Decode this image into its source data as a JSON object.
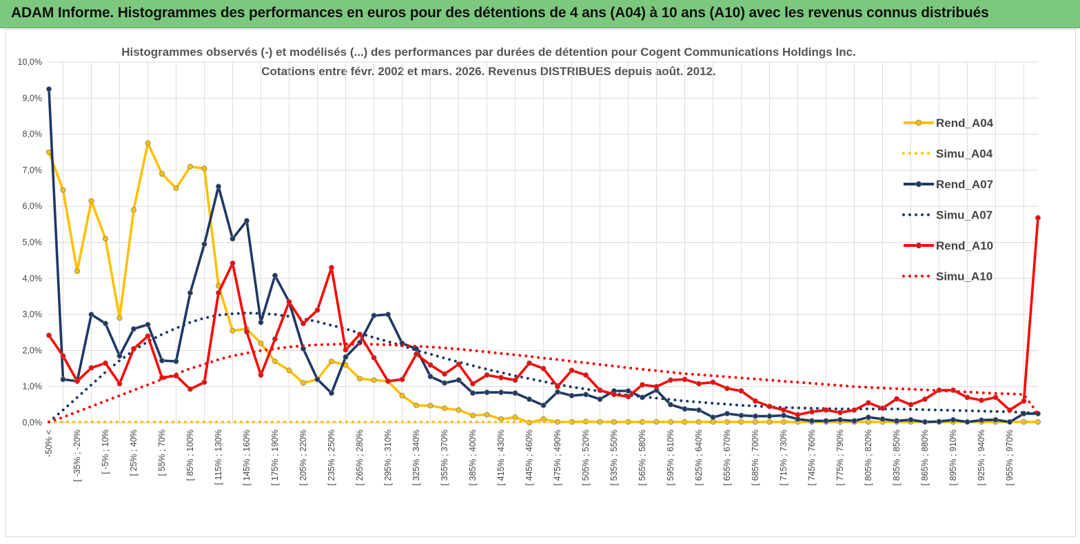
{
  "header": {
    "title": "ADAM Informe. Histogrammes des performances en euros pour des détentions de 4 ans (A04) à 10 ans (A10) avec les revenus connus distribués",
    "background": "#7dc87f"
  },
  "chart_data": {
    "type": "line",
    "title_line1": "Histogrammes observés (-) et modélisés (...) des performances par durées de détention pour Cogent Communications Holdings Inc.",
    "title_line2": "Cotations entre févr. 2002 et mars. 2026. Revenus DISTRIBUES depuis août. 2012.",
    "ylim": [
      0,
      10
    ],
    "yticks": [
      "0,0%",
      "1,0%",
      "2,0%",
      "3,0%",
      "4,0%",
      "5,0%",
      "6,0%",
      "7,0%",
      "8,0%",
      "9,0%",
      "10,0%"
    ],
    "xticklabels": [
      "-50% <",
      "[ -35% ; -20%",
      "[ -5% ; 10%",
      "[ 25% ; 40%",
      "[ 55% ; 70%",
      "[ 85% ; 100%",
      "[ 115% ; 130%",
      "[ 145% ; 160%",
      "[ 175% ; 190%",
      "[ 205% ; 220%",
      "[ 235% ; 250%",
      "[ 265% ; 280%",
      "[ 295% ; 310%",
      "[ 325% ; 340%",
      "[ 355% ; 370%",
      "[ 385% ; 400%",
      "[ 415% ; 430%",
      "[ 445% ; 460%",
      "[ 475% ; 490%",
      "[ 505% ; 520%",
      "[ 535% ; 550%",
      "[ 565% ; 580%",
      "[ 595% ; 610%",
      "[ 625% ; 640%",
      "[ 655% ; 670%",
      "[ 685% ; 700%",
      "[ 715% ; 730%",
      "[ 745% ; 760%",
      "[ 775% ; 790%",
      "[ 805% ; 820%",
      "[ 835% ; 850%",
      "[ 865% ; 880%",
      "[ 895% ; 910%",
      "[ 925% ; 940%",
      "[ 955% ; 970%"
    ],
    "series": [
      {
        "name": "Rend_A04",
        "style": "solid",
        "color": "#ffc000",
        "values": [
          7.5,
          6.45,
          4.2,
          6.15,
          5.1,
          2.9,
          5.9,
          7.75,
          6.9,
          6.5,
          7.1,
          7.05,
          3.8,
          2.55,
          2.6,
          2.2,
          1.7,
          1.45,
          1.1,
          1.2,
          1.7,
          1.6,
          1.22,
          1.18,
          1.15,
          0.75,
          0.48,
          0.47,
          0.4,
          0.35,
          0.2,
          0.22,
          0.1,
          0.15,
          0.0,
          0.1,
          0.02,
          0.02,
          0.03,
          0.02,
          0.02,
          0.02,
          0.02,
          0.02,
          0.02,
          0.02,
          0.02,
          0.02,
          0.02,
          0.02,
          0.02,
          0.02,
          0.02,
          0.02,
          0.02,
          0.02,
          0.02,
          0.02,
          0.02,
          0.02,
          0.02,
          0.02,
          0.02,
          0.02,
          0.02,
          0.02,
          0.02,
          0.02,
          0.02,
          0.02,
          0.02
        ]
      },
      {
        "name": "Simu_A04",
        "style": "dotted",
        "color": "#ffc000",
        "values": [
          0.02,
          0.02,
          0.02,
          0.02,
          0.02,
          0.02,
          0.02,
          0.02,
          0.02,
          0.02,
          0.02,
          0.02,
          0.02,
          0.02,
          0.02,
          0.02,
          0.02,
          0.02,
          0.02,
          0.02,
          0.02,
          0.02,
          0.02,
          0.02,
          0.02,
          0.02,
          0.02,
          0.02,
          0.02,
          0.02,
          0.02,
          0.02,
          0.02,
          0.02,
          0.02,
          0.02,
          0.02,
          0.02,
          0.02,
          0.02,
          0.02,
          0.02,
          0.02,
          0.02,
          0.02,
          0.02,
          0.02,
          0.02,
          0.02,
          0.02,
          0.02,
          0.02,
          0.02,
          0.02,
          0.02,
          0.02,
          0.02,
          0.02,
          0.02,
          0.02,
          0.02,
          0.02,
          0.02,
          0.02,
          0.02,
          0.02,
          0.02,
          0.02,
          0.02,
          0.02,
          0.02
        ]
      },
      {
        "name": "Rend_A07",
        "style": "solid",
        "color": "#1f3864",
        "values": [
          9.25,
          1.2,
          1.15,
          3.0,
          2.75,
          1.85,
          2.6,
          2.72,
          1.72,
          1.7,
          3.6,
          4.95,
          6.55,
          5.1,
          5.6,
          2.78,
          4.08,
          3.35,
          2.05,
          1.2,
          0.82,
          1.82,
          2.22,
          2.97,
          3.0,
          2.2,
          2.05,
          1.28,
          1.1,
          1.18,
          0.82,
          0.84,
          0.84,
          0.82,
          0.65,
          0.48,
          0.85,
          0.75,
          0.78,
          0.65,
          0.88,
          0.88,
          0.7,
          0.9,
          0.5,
          0.38,
          0.35,
          0.15,
          0.25,
          0.2,
          0.18,
          0.18,
          0.2,
          0.1,
          0.05,
          0.05,
          0.08,
          0.05,
          0.15,
          0.1,
          0.05,
          0.08,
          0.02,
          0.03,
          0.08,
          0.02,
          0.07,
          0.08,
          0.02,
          0.25,
          0.25
        ]
      },
      {
        "name": "Simu_A07",
        "style": "dotted",
        "color": "#1f3864",
        "values": [
          0.02,
          0.35,
          0.7,
          1.05,
          1.4,
          1.72,
          2.0,
          2.25,
          2.45,
          2.62,
          2.78,
          2.9,
          2.98,
          3.02,
          3.04,
          3.03,
          3.0,
          2.95,
          2.88,
          2.8,
          2.7,
          2.6,
          2.48,
          2.36,
          2.25,
          2.13,
          2.01,
          1.9,
          1.79,
          1.68,
          1.58,
          1.48,
          1.39,
          1.3,
          1.22,
          1.14,
          1.06,
          0.99,
          0.93,
          0.87,
          0.81,
          0.76,
          0.72,
          0.68,
          0.64,
          0.6,
          0.57,
          0.54,
          0.51,
          0.48,
          0.46,
          0.44,
          0.42,
          0.41,
          0.4,
          0.39,
          0.38,
          0.38,
          0.38,
          0.38,
          0.38,
          0.37,
          0.36,
          0.35,
          0.34,
          0.33,
          0.32,
          0.31,
          0.3,
          0.28,
          0.27
        ]
      },
      {
        "name": "Rend_A10",
        "style": "solid",
        "color": "#ff0000",
        "values": [
          2.42,
          1.85,
          1.15,
          1.52,
          1.65,
          1.08,
          2.05,
          2.4,
          1.25,
          1.3,
          0.93,
          1.12,
          3.6,
          4.42,
          2.52,
          1.32,
          2.32,
          3.35,
          2.75,
          3.12,
          4.3,
          2.02,
          2.45,
          1.8,
          1.15,
          1.2,
          1.9,
          1.6,
          1.35,
          1.62,
          1.08,
          1.32,
          1.25,
          1.18,
          1.65,
          1.5,
          1.0,
          1.45,
          1.32,
          0.9,
          0.78,
          0.72,
          1.05,
          1.0,
          1.18,
          1.2,
          1.08,
          1.12,
          0.95,
          0.88,
          0.6,
          0.45,
          0.35,
          0.22,
          0.3,
          0.35,
          0.28,
          0.35,
          0.55,
          0.4,
          0.66,
          0.5,
          0.65,
          0.9,
          0.9,
          0.7,
          0.62,
          0.7,
          0.35,
          0.6,
          5.68
        ]
      },
      {
        "name": "Simu_A10",
        "style": "dotted",
        "color": "#ff0000",
        "values": [
          0.02,
          0.15,
          0.3,
          0.45,
          0.6,
          0.75,
          0.9,
          1.05,
          1.2,
          1.35,
          1.5,
          1.62,
          1.75,
          1.85,
          1.93,
          2.0,
          2.05,
          2.1,
          2.13,
          2.16,
          2.17,
          2.18,
          2.18,
          2.17,
          2.16,
          2.14,
          2.12,
          2.1,
          2.07,
          2.04,
          2.0,
          1.96,
          1.92,
          1.88,
          1.84,
          1.79,
          1.75,
          1.7,
          1.66,
          1.61,
          1.57,
          1.52,
          1.48,
          1.44,
          1.4,
          1.36,
          1.33,
          1.3,
          1.27,
          1.24,
          1.21,
          1.18,
          1.15,
          1.12,
          1.09,
          1.06,
          1.03,
          1.0,
          0.98,
          0.96,
          0.94,
          0.93,
          0.91,
          0.89,
          0.87,
          0.85,
          0.83,
          0.81,
          0.8,
          0.78,
          0.25
        ]
      }
    ],
    "legend_placement": "right"
  }
}
